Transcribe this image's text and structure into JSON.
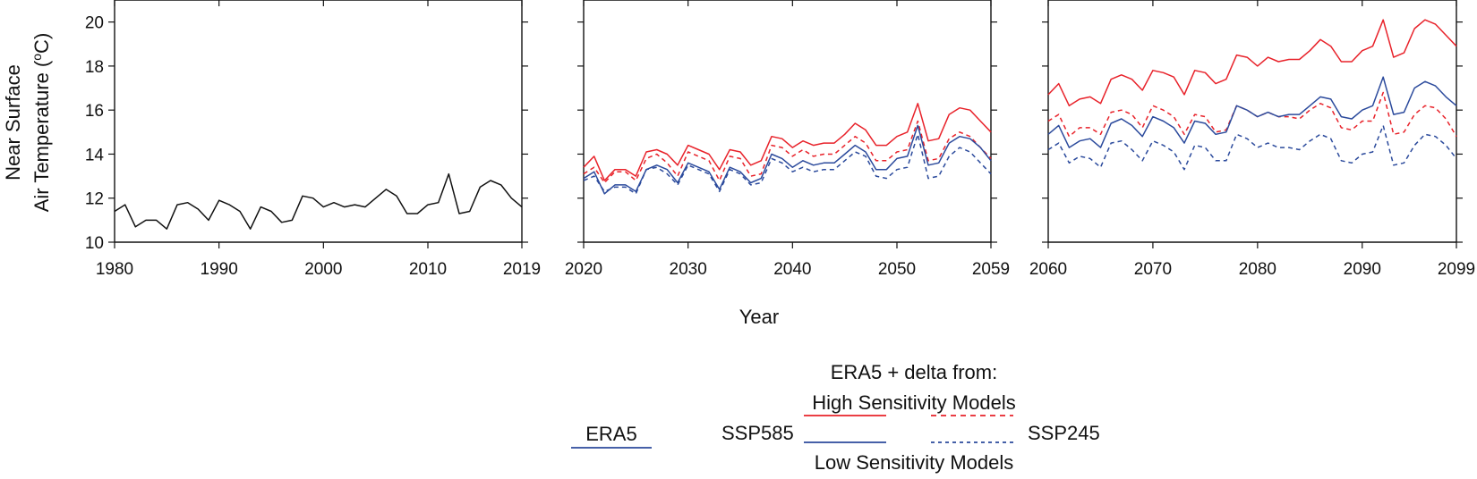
{
  "chart_data": {
    "type": "line",
    "ylabel_line1": "Near Surface",
    "ylabel_line2": "Air Temperature (",
    "ylabel_super": "o",
    "ylabel_line2_end": "C)",
    "ylim": [
      10,
      21
    ],
    "yticks": [
      10,
      12,
      14,
      16,
      18,
      20
    ],
    "xlabel": "Year",
    "colors": {
      "black": "#111111",
      "red": "#e8222a",
      "blue": "#2b4a9c"
    },
    "panels": [
      {
        "name": "historical",
        "xlim": [
          1980,
          2019
        ],
        "xticks": [
          1980,
          1990,
          2000,
          2010,
          2019
        ],
        "start_year": 1980,
        "series": [
          {
            "name": "ERA5",
            "color": "black",
            "dashed": false,
            "values": [
              11.4,
              11.7,
              10.7,
              11.0,
              11.0,
              10.6,
              11.7,
              11.8,
              11.5,
              11.0,
              11.9,
              11.7,
              11.4,
              10.6,
              11.6,
              11.4,
              10.9,
              11.0,
              12.1,
              12.0,
              11.6,
              11.8,
              11.6,
              11.7,
              11.6,
              12.0,
              12.4,
              12.1,
              11.3,
              11.3,
              11.7,
              11.8,
              13.1,
              11.3,
              11.4,
              12.5,
              12.8,
              12.6,
              12.0,
              11.6
            ]
          }
        ]
      },
      {
        "name": "mid-century",
        "xlim": [
          2020,
          2059
        ],
        "xticks": [
          2020,
          2030,
          2040,
          2050,
          2059
        ],
        "start_year": 2020,
        "series": [
          {
            "name": "High Sensitivity SSP585",
            "color": "red",
            "dashed": false,
            "values": [
              13.4,
              13.9,
              12.8,
              13.3,
              13.3,
              13.0,
              14.1,
              14.2,
              14.0,
              13.5,
              14.4,
              14.2,
              14.0,
              13.3,
              14.2,
              14.1,
              13.5,
              13.7,
              14.8,
              14.7,
              14.3,
              14.6,
              14.4,
              14.5,
              14.5,
              14.9,
              15.4,
              15.1,
              14.4,
              14.4,
              14.8,
              15.0,
              16.3,
              14.6,
              14.7,
              15.8,
              16.1,
              16.0,
              15.5,
              15.0
            ]
          },
          {
            "name": "High Sensitivity SSP245",
            "color": "red",
            "dashed": true,
            "values": [
              13.1,
              13.4,
              12.7,
              13.2,
              13.2,
              12.8,
              13.8,
              14.0,
              13.6,
              13.0,
              14.1,
              13.9,
              13.7,
              12.8,
              13.9,
              13.8,
              13.0,
              13.1,
              14.4,
              14.3,
              13.9,
              14.2,
              13.9,
              14.0,
              14.0,
              14.4,
              14.8,
              14.5,
              13.7,
              13.7,
              14.1,
              14.2,
              15.5,
              13.7,
              13.8,
              14.7,
              15.0,
              14.8,
              14.3,
              13.8
            ]
          },
          {
            "name": "Low Sensitivity SSP585",
            "color": "blue",
            "dashed": false,
            "values": [
              12.9,
              13.2,
              12.2,
              12.6,
              12.6,
              12.3,
              13.3,
              13.5,
              13.3,
              12.7,
              13.6,
              13.4,
              13.2,
              12.4,
              13.4,
              13.2,
              12.7,
              12.9,
              14.0,
              13.8,
              13.4,
              13.7,
              13.5,
              13.6,
              13.6,
              14.0,
              14.4,
              14.1,
              13.3,
              13.3,
              13.8,
              13.9,
              15.3,
              13.5,
              13.6,
              14.5,
              14.8,
              14.7,
              14.3,
              13.7
            ]
          },
          {
            "name": "Low Sensitivity SSP245",
            "color": "blue",
            "dashed": true,
            "values": [
              12.8,
              13.0,
              12.3,
              12.5,
              12.5,
              12.2,
              13.3,
              13.4,
              13.1,
              12.6,
              13.5,
              13.3,
              13.1,
              12.3,
              13.3,
              13.1,
              12.6,
              12.7,
              13.8,
              13.6,
              13.2,
              13.4,
              13.2,
              13.3,
              13.3,
              13.7,
              14.1,
              13.9,
              13.0,
              12.9,
              13.3,
              13.4,
              14.9,
              12.9,
              13.0,
              13.9,
              14.3,
              14.1,
              13.6,
              13.1
            ]
          }
        ]
      },
      {
        "name": "end-century",
        "xlim": [
          2060,
          2099
        ],
        "xticks": [
          2060,
          2070,
          2080,
          2090,
          2099
        ],
        "start_year": 2060,
        "series": [
          {
            "name": "High Sensitivity SSP585",
            "color": "red",
            "dashed": false,
            "values": [
              16.7,
              17.2,
              16.2,
              16.5,
              16.6,
              16.3,
              17.4,
              17.6,
              17.4,
              16.9,
              17.8,
              17.7,
              17.5,
              16.7,
              17.8,
              17.7,
              17.2,
              17.4,
              18.5,
              18.4,
              18.0,
              18.4,
              18.2,
              18.3,
              18.3,
              18.7,
              19.2,
              18.9,
              18.2,
              18.2,
              18.7,
              18.9,
              20.1,
              18.4,
              18.6,
              19.7,
              20.1,
              19.9,
              19.4,
              18.9
            ]
          },
          {
            "name": "High Sensitivity SSP245",
            "color": "red",
            "dashed": true,
            "values": [
              15.5,
              15.8,
              14.8,
              15.2,
              15.2,
              14.9,
              15.9,
              16.0,
              15.8,
              15.2,
              16.2,
              16.0,
              15.7,
              14.9,
              15.8,
              15.7,
              15.0,
              15.1,
              16.2,
              16.0,
              15.7,
              15.9,
              15.7,
              15.7,
              15.6,
              16.0,
              16.3,
              16.1,
              15.2,
              15.1,
              15.5,
              15.5,
              16.8,
              14.9,
              15.0,
              15.8,
              16.2,
              16.1,
              15.6,
              14.8
            ]
          },
          {
            "name": "Low Sensitivity SSP585",
            "color": "blue",
            "dashed": false,
            "values": [
              14.9,
              15.3,
              14.3,
              14.6,
              14.7,
              14.3,
              15.4,
              15.6,
              15.3,
              14.8,
              15.7,
              15.5,
              15.2,
              14.5,
              15.5,
              15.4,
              14.9,
              15.0,
              16.2,
              16.0,
              15.7,
              15.9,
              15.7,
              15.8,
              15.8,
              16.2,
              16.6,
              16.5,
              15.7,
              15.6,
              16.0,
              16.2,
              17.5,
              15.8,
              15.9,
              17.0,
              17.3,
              17.1,
              16.6,
              16.2
            ]
          },
          {
            "name": "Low Sensitivity SSP245",
            "color": "blue",
            "dashed": true,
            "values": [
              14.2,
              14.5,
              13.6,
              13.9,
              13.8,
              13.4,
              14.5,
              14.6,
              14.2,
              13.7,
              14.6,
              14.4,
              14.1,
              13.3,
              14.4,
              14.3,
              13.7,
              13.7,
              14.9,
              14.7,
              14.3,
              14.5,
              14.3,
              14.3,
              14.2,
              14.6,
              14.9,
              14.7,
              13.7,
              13.6,
              14.0,
              14.1,
              15.3,
              13.5,
              13.6,
              14.4,
              14.9,
              14.8,
              14.4,
              13.8
            ]
          }
        ]
      }
    ],
    "legend": {
      "placement": "bottom-center",
      "header": "ERA5 + delta from:",
      "high_label": "High Sensitivity Models",
      "low_label": "Low Sensitivity Models",
      "era5_label": "ERA5",
      "ssp585_label": "SSP585",
      "ssp245_label": "SSP245"
    }
  }
}
